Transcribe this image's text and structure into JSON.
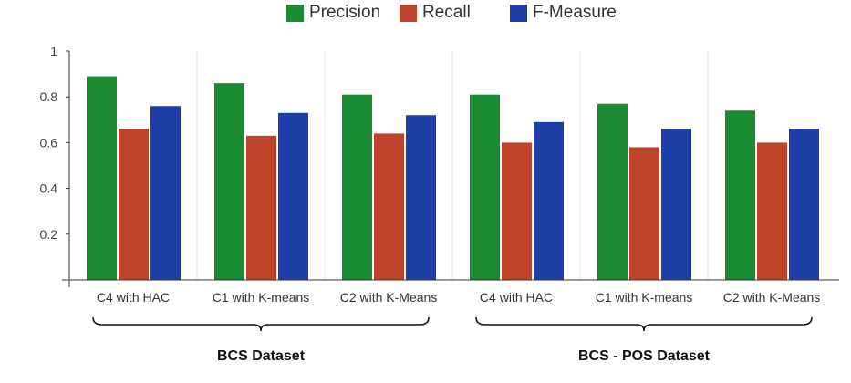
{
  "chart_data": {
    "type": "bar",
    "title": "",
    "xlabel": "",
    "ylabel": "",
    "ylim": [
      0,
      1
    ],
    "yticks": [
      0.2,
      0.4,
      0.6,
      0.8,
      1
    ],
    "grid": "vertical separators between categories",
    "legend_position": "top-center",
    "categories": [
      "C4 with HAC",
      "C1 with K-means",
      "C2 with K-Means",
      "C4 with HAC",
      "C1 with K-means",
      "C2 with K-Means"
    ],
    "groups": [
      {
        "label": "BCS Dataset",
        "categories": [
          0,
          1,
          2
        ]
      },
      {
        "label": "BCS - POS Dataset",
        "categories": [
          3,
          4,
          5
        ]
      }
    ],
    "series": [
      {
        "name": "Precision",
        "color": "#1a8a33",
        "values": [
          0.89,
          0.86,
          0.81,
          0.81,
          0.77,
          0.74
        ]
      },
      {
        "name": "Recall",
        "color": "#bf432a",
        "values": [
          0.66,
          0.63,
          0.64,
          0.6,
          0.58,
          0.6
        ]
      },
      {
        "name": "F-Measure",
        "color": "#1f3fa8",
        "values": [
          0.76,
          0.73,
          0.72,
          0.69,
          0.66,
          0.66
        ]
      }
    ]
  }
}
